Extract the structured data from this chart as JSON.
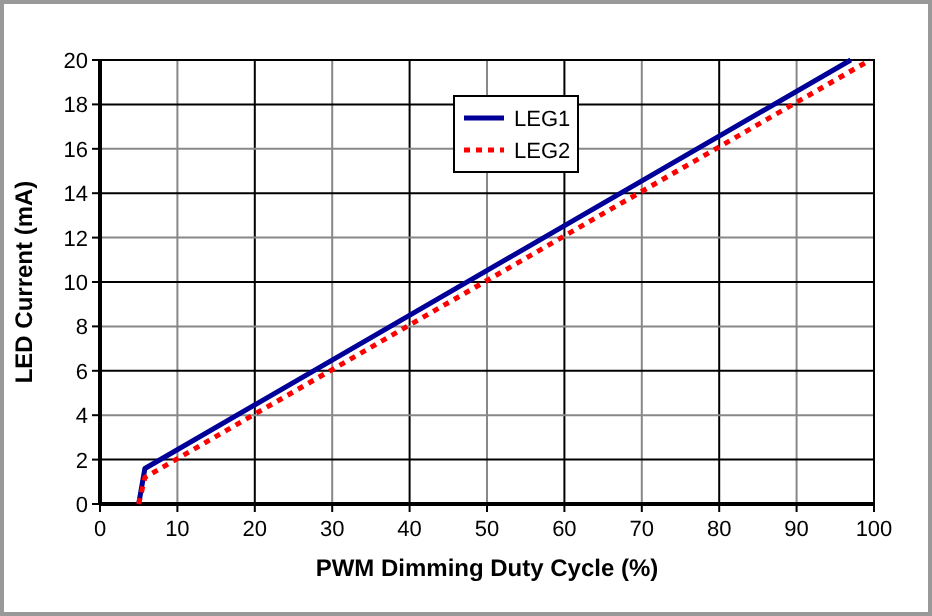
{
  "chart_data": {
    "type": "line",
    "xlabel": "PWM Dimming Duty Cycle (%)",
    "ylabel": "LED Current (mA)",
    "xlim": [
      0,
      100
    ],
    "xticks": [
      0,
      10,
      20,
      30,
      40,
      50,
      60,
      70,
      80,
      90,
      100
    ],
    "ylim": [
      0,
      20
    ],
    "yticks": [
      0,
      2,
      4,
      6,
      8,
      10,
      12,
      14,
      16,
      18,
      20
    ],
    "grid": true,
    "legend": "top right",
    "marker": "none",
    "series": [
      {
        "name": "LEG1",
        "color": "#000099",
        "line_style": "solid",
        "x": [
          5,
          5.8,
          97
        ],
        "values": [
          0,
          1.6,
          20
        ]
      },
      {
        "name": "LEG2",
        "color": "#ff0000",
        "line_style": "dotted",
        "x": [
          5,
          5.8,
          99.5
        ],
        "values": [
          0,
          1.2,
          20
        ]
      }
    ]
  }
}
